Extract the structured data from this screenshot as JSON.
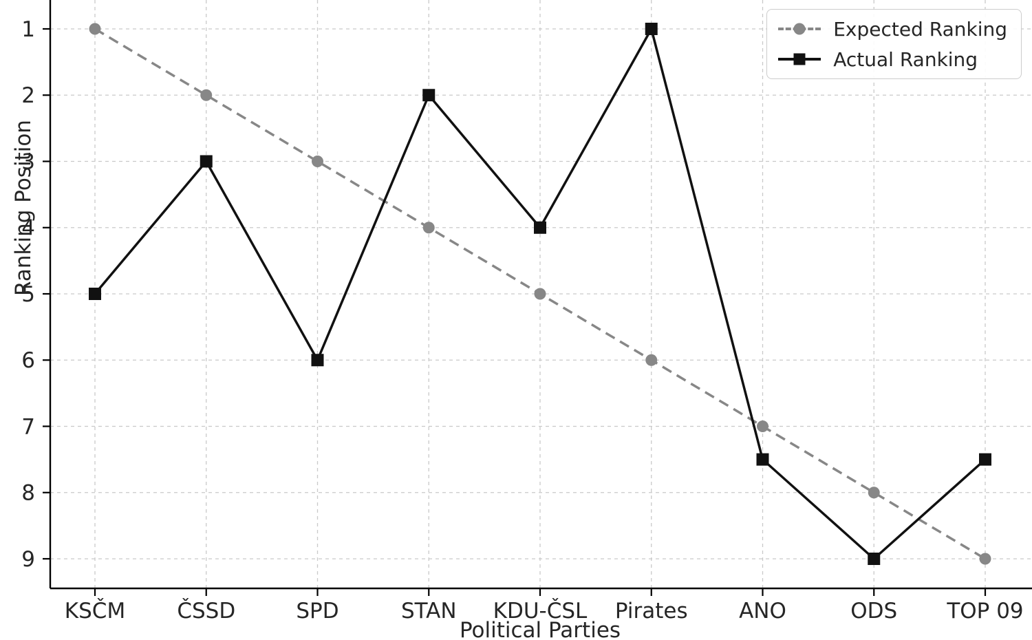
{
  "figure": {
    "x_axis_label": "Political Parties",
    "y_axis_label": "Ranking Position"
  },
  "chart_data": {
    "type": "line",
    "title": "",
    "xlabel": "Political Parties",
    "ylabel": "Ranking Position",
    "categories": [
      "KSČM",
      "ČSSD",
      "SPD",
      "STAN",
      "KDU-ČSL",
      "Pirates",
      "ANO",
      "ODS",
      "TOP 09"
    ],
    "series": [
      {
        "name": "Expected Ranking",
        "values": [
          1,
          2,
          3,
          4,
          5,
          6,
          7,
          8,
          9
        ],
        "color": "#878787",
        "line_style": "dashed",
        "marker": "circle"
      },
      {
        "name": "Actual Ranking",
        "values": [
          5,
          3,
          6,
          2,
          4,
          1,
          7.5,
          9,
          7.5
        ],
        "color": "#111111",
        "line_style": "solid",
        "marker": "square"
      }
    ],
    "y_ticks": [
      1,
      2,
      3,
      4,
      5,
      6,
      7,
      8,
      9
    ],
    "y_axis_inverted": true,
    "grid": true,
    "grid_style": "dashed",
    "legend_position": "top-right",
    "colors": {
      "grid": "#c9c9c9",
      "spine": "#000000",
      "tick_text": "#262626",
      "background": "#ffffff"
    }
  }
}
